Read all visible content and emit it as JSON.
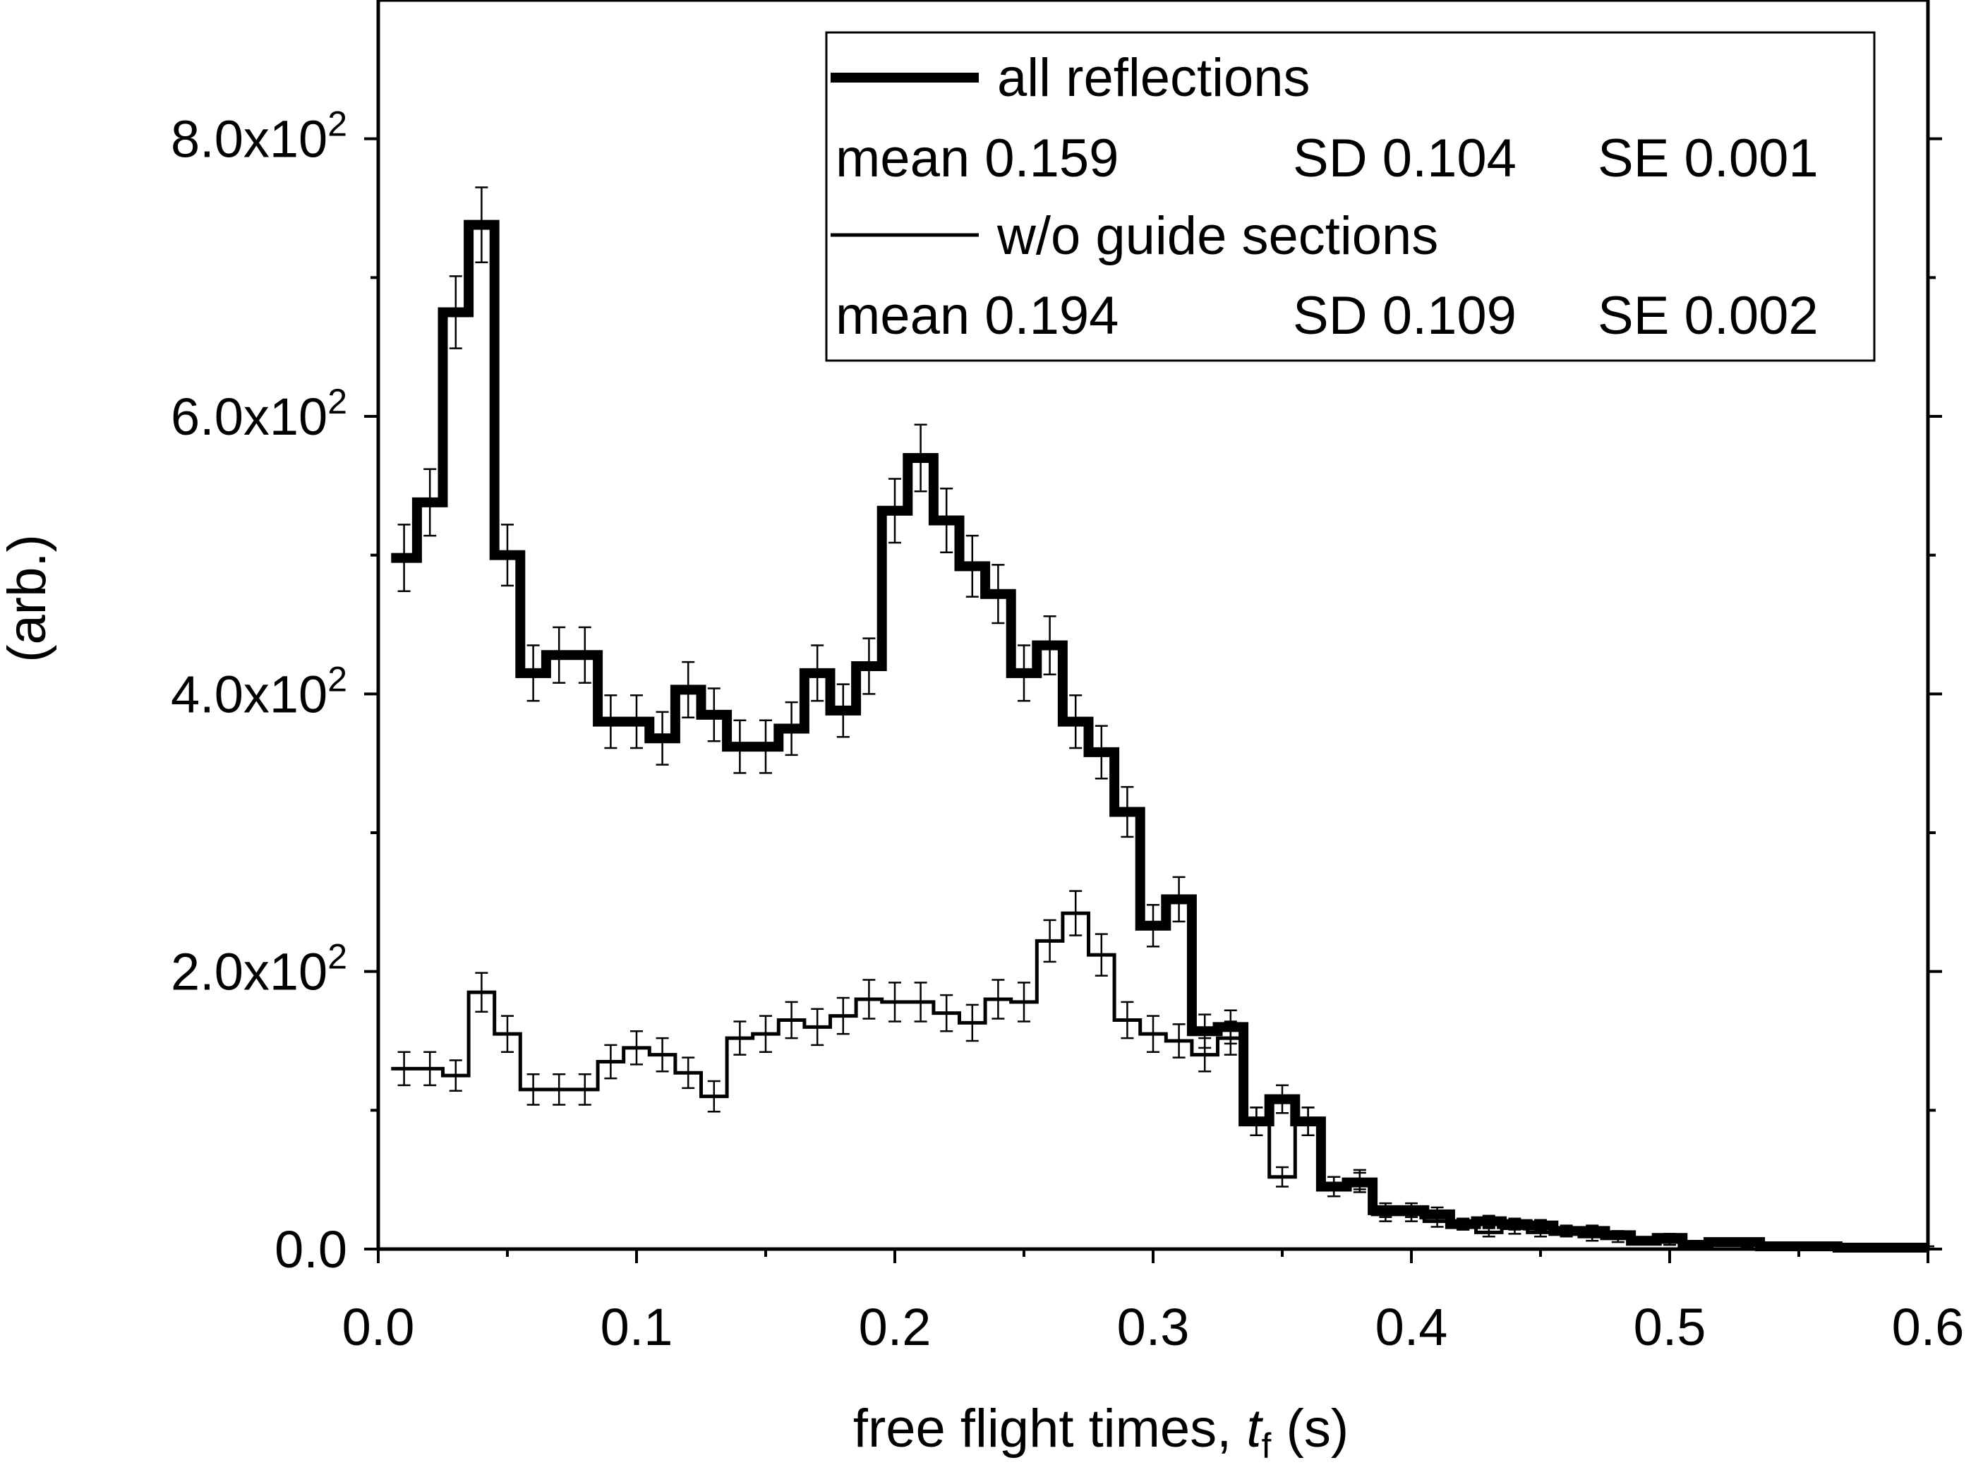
{
  "chart_data": {
    "type": "histogram",
    "xlabel": "free flight times, t_f (s)",
    "xlabel_parts": {
      "pre": "free flight times, ",
      "var": "t",
      "sub": "f",
      "post": " (s)"
    },
    "ylabel": "(arb.)",
    "xlim": [
      0,
      0.6
    ],
    "ylim": [
      0,
      900
    ],
    "x_ticks": [
      0.0,
      0.1,
      0.2,
      0.3,
      0.4,
      0.5,
      0.6
    ],
    "x_tick_labels": [
      "0.0",
      "0.1",
      "0.2",
      "0.3",
      "0.4",
      "0.5",
      "0.6"
    ],
    "y_ticks": [
      0,
      200,
      400,
      600,
      800
    ],
    "y_tick_labels": [
      {
        "mantissa": "0.0",
        "exponent": ""
      },
      {
        "mantissa": "2.0x10",
        "exponent": "2"
      },
      {
        "mantissa": "4.0x10",
        "exponent": "2"
      },
      {
        "mantissa": "6.0x10",
        "exponent": "2"
      },
      {
        "mantissa": "8.0x10",
        "exponent": "2"
      }
    ],
    "bin_width": 0.01,
    "bin_starts": [
      0.005,
      0.015,
      0.025,
      0.035,
      0.045,
      0.055,
      0.065,
      0.075,
      0.085,
      0.095,
      0.105,
      0.115,
      0.125,
      0.135,
      0.145,
      0.155,
      0.165,
      0.175,
      0.185,
      0.195,
      0.205,
      0.215,
      0.225,
      0.235,
      0.245,
      0.255,
      0.265,
      0.275,
      0.285,
      0.295,
      0.305,
      0.315,
      0.325,
      0.335,
      0.345,
      0.355,
      0.365,
      0.375,
      0.385,
      0.395,
      0.405,
      0.415,
      0.425,
      0.435,
      0.445,
      0.455,
      0.465,
      0.475,
      0.485,
      0.495,
      0.505,
      0.515,
      0.525,
      0.535,
      0.545,
      0.555,
      0.565,
      0.575,
      0.585,
      0.595
    ],
    "series": [
      {
        "name": "all reflections",
        "stroke_width": "thick",
        "values": [
          498,
          538,
          675,
          738,
          500,
          415,
          428,
          428,
          380,
          380,
          368,
          403,
          385,
          362,
          362,
          375,
          415,
          388,
          420,
          532,
          570,
          525,
          492,
          472,
          415,
          435,
          380,
          358,
          315,
          233,
          252,
          157,
          160,
          92,
          108,
          92,
          45,
          48,
          28,
          28,
          25,
          18,
          20,
          18,
          17,
          13,
          13,
          10,
          6,
          8,
          3,
          5,
          5,
          2,
          2,
          2,
          1,
          1,
          1,
          1
        ],
        "errors": [
          24,
          24,
          26,
          27,
          22,
          20,
          20,
          20,
          19,
          19,
          19,
          20,
          19,
          19,
          19,
          19,
          20,
          19,
          20,
          23,
          24,
          23,
          22,
          21,
          20,
          21,
          19,
          19,
          18,
          15,
          16,
          12,
          12,
          10,
          10,
          10,
          7,
          7,
          5,
          5,
          5,
          4,
          4,
          4,
          4,
          4,
          4,
          3,
          2,
          3,
          2,
          2,
          2,
          1,
          1,
          1,
          1,
          1,
          1,
          1
        ]
      },
      {
        "name": "w/o guide sections",
        "stroke_width": "thin",
        "values": [
          130,
          130,
          125,
          185,
          155,
          115,
          115,
          115,
          135,
          145,
          140,
          127,
          110,
          152,
          155,
          165,
          160,
          168,
          180,
          178,
          178,
          170,
          163,
          180,
          178,
          222,
          242,
          212,
          165,
          155,
          150,
          140,
          152,
          92,
          52,
          92,
          45,
          50,
          25,
          25,
          20,
          18,
          12,
          15,
          12,
          12,
          9,
          8,
          6,
          5,
          4,
          5,
          3,
          2,
          2,
          2,
          1,
          1,
          1,
          1
        ],
        "errors": [
          12,
          12,
          11,
          14,
          13,
          11,
          11,
          11,
          12,
          12,
          12,
          11,
          11,
          12,
          13,
          13,
          13,
          13,
          14,
          14,
          14,
          13,
          13,
          14,
          14,
          15,
          16,
          15,
          13,
          13,
          12,
          12,
          12,
          10,
          7,
          10,
          7,
          7,
          5,
          5,
          4,
          4,
          3,
          4,
          3,
          3,
          3,
          3,
          2,
          2,
          2,
          2,
          2,
          1,
          1,
          1,
          1,
          1,
          1,
          1
        ]
      }
    ],
    "legend": {
      "placement": "top-right",
      "entries": [
        {
          "label": "all reflections",
          "stats": {
            "mean": "mean 0.159",
            "sd": "SD 0.104",
            "se": "SE 0.001"
          }
        },
        {
          "label": "w/o guide sections",
          "stats": {
            "mean": "mean 0.194",
            "sd": "SD 0.109",
            "se": "SE 0.002"
          }
        }
      ]
    },
    "grid": false,
    "colors": {
      "line": "#000000",
      "background": "#ffffff"
    }
  }
}
